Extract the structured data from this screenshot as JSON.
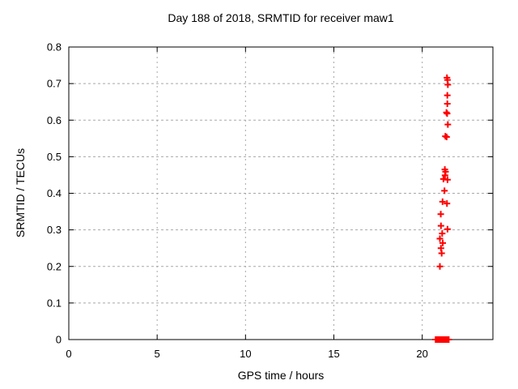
{
  "colors": {
    "background": "#ffffff",
    "frame": "#000000",
    "grid": "#a8a8a8",
    "marker": "#ff0000",
    "text": "#000000"
  },
  "chart_data": {
    "type": "scatter",
    "title": "Day 188 of 2018, SRMTID for receiver maw1",
    "xlabel": "GPS time / hours",
    "ylabel": "SRMTID / TECUs",
    "xlim": [
      0,
      24
    ],
    "ylim": [
      0,
      0.8
    ],
    "xticks": [
      0,
      5,
      10,
      15,
      20
    ],
    "yticks": [
      0,
      0.1,
      0.2,
      0.3,
      0.4,
      0.5,
      0.6,
      0.7,
      0.8
    ],
    "grid": true,
    "legend_position": "none",
    "marker": "plus",
    "marker_size_px": 8,
    "series": [
      {
        "name": "SRMTID",
        "color": "#ff0000",
        "points": [
          [
            21.4,
            0.716
          ],
          [
            21.43,
            0.71
          ],
          [
            21.45,
            0.697
          ],
          [
            21.42,
            0.668
          ],
          [
            21.42,
            0.645
          ],
          [
            21.37,
            0.621
          ],
          [
            21.41,
            0.618
          ],
          [
            21.45,
            0.588
          ],
          [
            21.31,
            0.556
          ],
          [
            21.38,
            0.554
          ],
          [
            21.28,
            0.465
          ],
          [
            21.32,
            0.459
          ],
          [
            21.29,
            0.449
          ],
          [
            21.2,
            0.439
          ],
          [
            21.43,
            0.437
          ],
          [
            21.26,
            0.407
          ],
          [
            21.15,
            0.377
          ],
          [
            21.4,
            0.372
          ],
          [
            21.05,
            0.343
          ],
          [
            21.06,
            0.311
          ],
          [
            21.43,
            0.302
          ],
          [
            21.13,
            0.29
          ],
          [
            21.0,
            0.276
          ],
          [
            21.16,
            0.264
          ],
          [
            21.06,
            0.25
          ],
          [
            21.1,
            0.236
          ],
          [
            21.0,
            0.2
          ],
          [
            20.76,
            0.0
          ],
          [
            20.79,
            0.0
          ],
          [
            20.82,
            0.0
          ],
          [
            20.85,
            0.0
          ],
          [
            20.88,
            0.0
          ],
          [
            20.91,
            0.0
          ],
          [
            20.94,
            0.0
          ],
          [
            20.97,
            0.0
          ],
          [
            21.0,
            0.0
          ],
          [
            21.03,
            0.0
          ],
          [
            21.06,
            0.0
          ],
          [
            21.09,
            0.0
          ],
          [
            21.12,
            0.0
          ],
          [
            21.15,
            0.0
          ],
          [
            21.18,
            0.0
          ],
          [
            21.21,
            0.0
          ],
          [
            21.24,
            0.0
          ],
          [
            21.27,
            0.0
          ],
          [
            21.3,
            0.0
          ],
          [
            21.33,
            0.0
          ],
          [
            21.36,
            0.0
          ],
          [
            21.39,
            0.0
          ],
          [
            21.42,
            0.0
          ],
          [
            21.45,
            0.0
          ],
          [
            21.48,
            0.0
          ],
          [
            21.5,
            0.0
          ]
        ]
      }
    ]
  }
}
